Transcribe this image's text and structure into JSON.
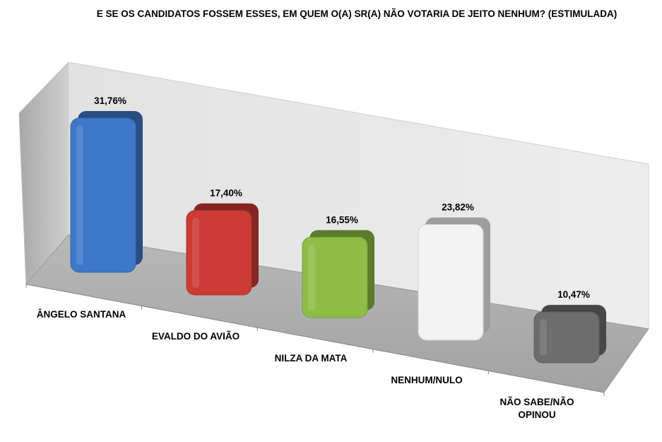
{
  "chart_data": {
    "type": "bar",
    "title": "E SE OS CANDIDATOS FOSSEM ESSES, EM QUEM O(A) SR(A) NÃO VOTARIA DE JEITO NENHUM? (ESTIMULADA)",
    "xlabel": "",
    "ylabel": "",
    "grid": false,
    "legend": "none",
    "categories": [
      "ÂNGELO SANTANA",
      "EVALDO DO AVIÃO",
      "NILZA DA MATA",
      "NENHUM/NULO",
      "NÃO SABE/NÃO OPINOU"
    ],
    "values": [
      31.76,
      17.4,
      16.55,
      23.82,
      10.47
    ],
    "value_labels": [
      "31,76%",
      "17,40%",
      "16,55%",
      "23,82%",
      "10,47%"
    ],
    "colors": [
      "#3f78c9",
      "#cc3b35",
      "#8dbd45",
      "#f3f3f3",
      "#6d6d6d"
    ]
  }
}
